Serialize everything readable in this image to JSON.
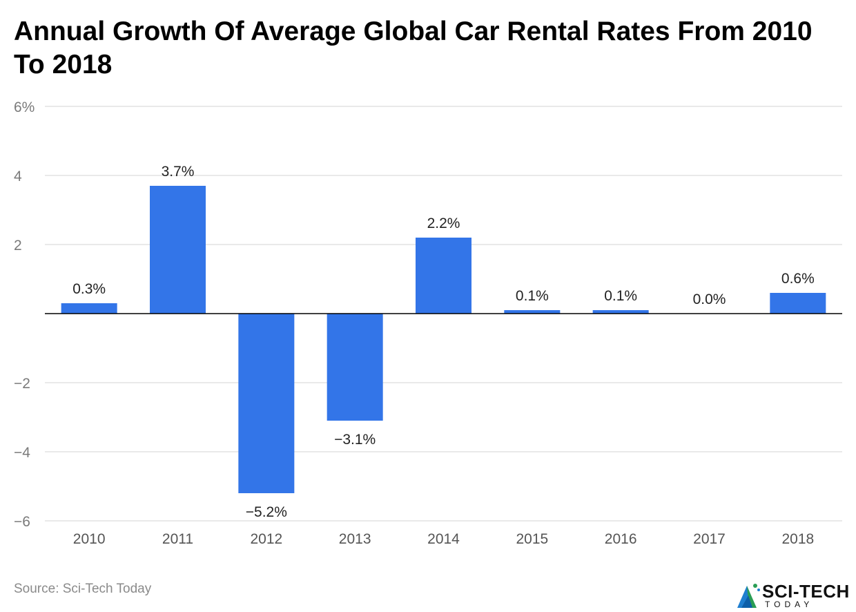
{
  "header": {
    "title": "Annual Growth Of Average Global Car Rental Rates From 2010 To 2018"
  },
  "footer": {
    "source": "Source: Sci-Tech Today"
  },
  "logo": {
    "name": "SCI-TECH",
    "sub": "TODAY",
    "icon": "sci-tech-today-logo-icon"
  },
  "colors": {
    "bar": "#3375e8",
    "grid": "#e2e2e2",
    "zero_line": "#000000"
  },
  "chart_data": {
    "type": "bar",
    "title": "Annual Growth Of Average Global Car Rental Rates From 2010 To 2018",
    "xlabel": "",
    "ylabel": "",
    "categories": [
      "2010",
      "2011",
      "2012",
      "2013",
      "2014",
      "2015",
      "2016",
      "2017",
      "2018"
    ],
    "values": [
      0.3,
      3.7,
      -5.2,
      -3.1,
      2.2,
      0.1,
      0.1,
      0.0,
      0.6
    ],
    "data_labels": [
      "0.3%",
      "3.7%",
      "−5.2%",
      "−3.1%",
      "2.2%",
      "0.1%",
      "0.1%",
      "0.0%",
      "0.6%"
    ],
    "ylim": [
      -6,
      6
    ],
    "yticks": [
      6,
      4,
      2,
      -2,
      -4,
      -6
    ],
    "ytick_labels": [
      "6%",
      "4",
      "2",
      "−2",
      "−4",
      "−6"
    ],
    "grid": true,
    "legend": "none"
  }
}
